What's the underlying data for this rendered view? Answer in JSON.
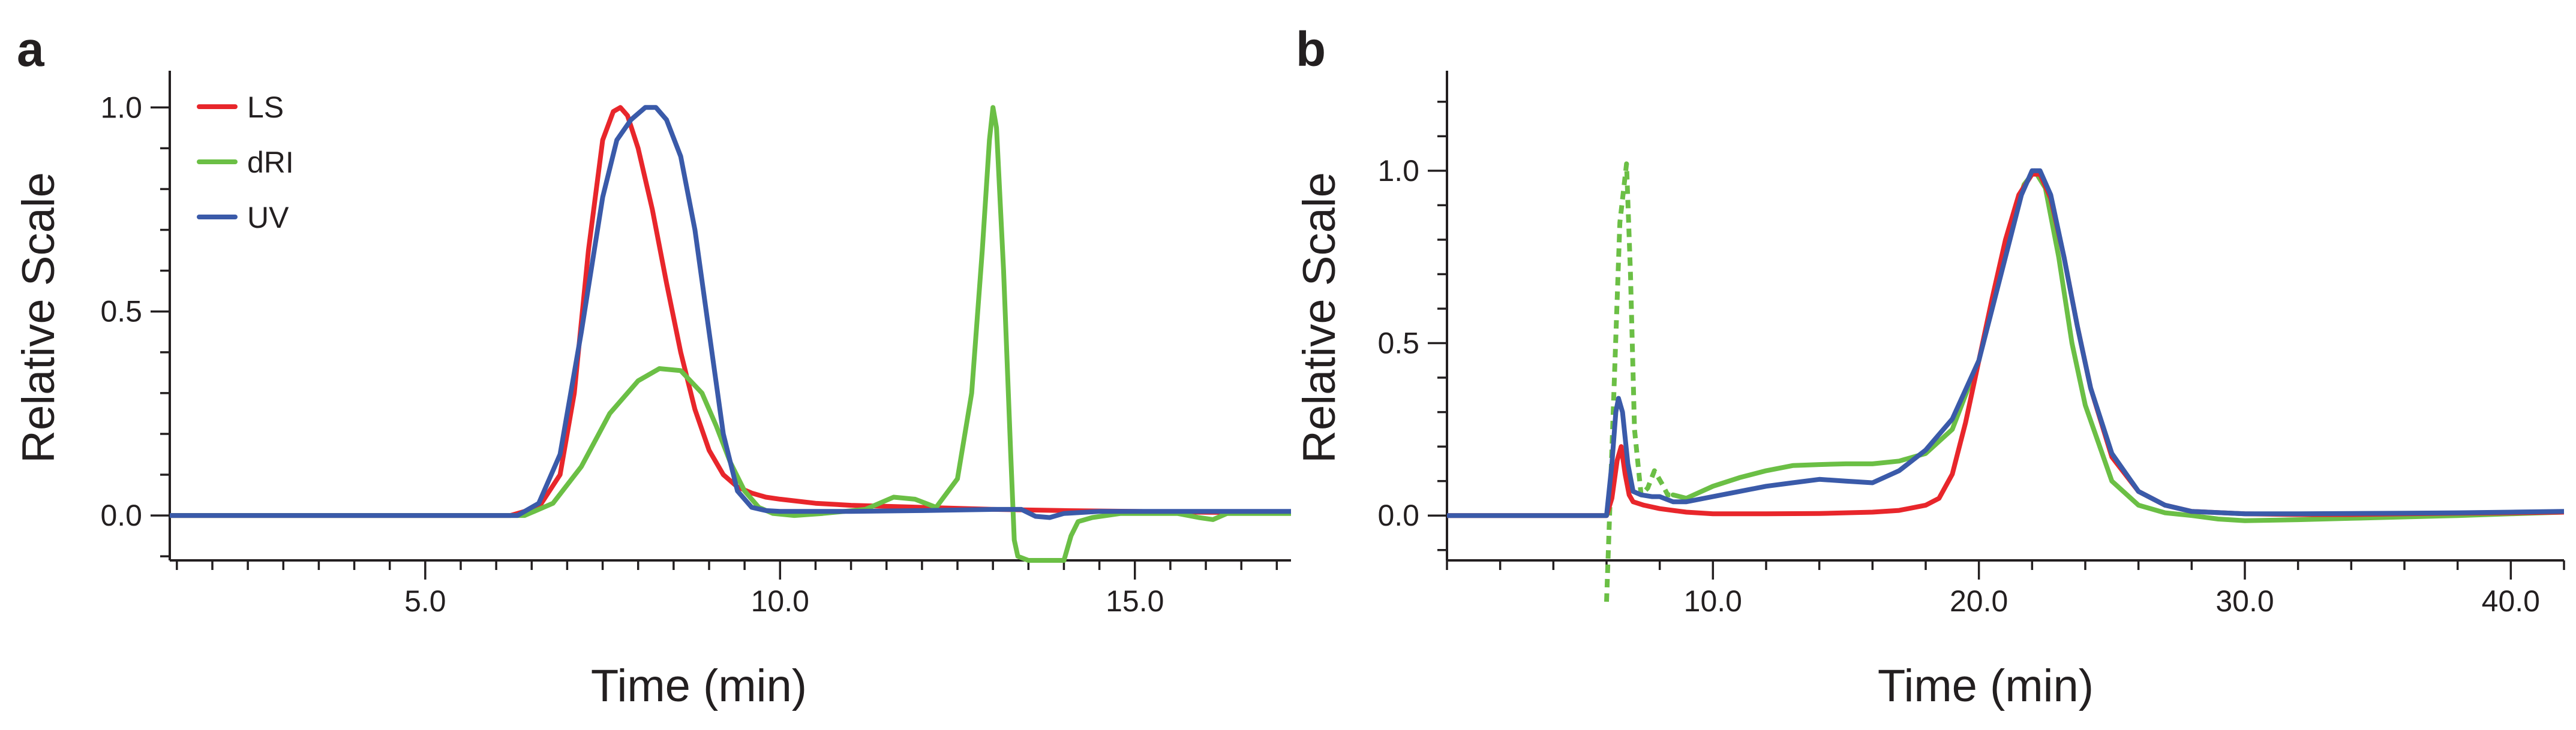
{
  "chart_data": [
    {
      "panel": "a",
      "type": "line",
      "title": "",
      "xlabel": "Time (min)",
      "ylabel": "Relative Scale",
      "xlim": [
        1.4,
        17.2
      ],
      "ylim": [
        -0.11,
        1.09
      ],
      "x_ticks": [
        5.0,
        10.0,
        15.0
      ],
      "x_tick_labels": [
        "5.0",
        "10.0",
        "15.0"
      ],
      "y_ticks": [
        0.0,
        0.5,
        1.0
      ],
      "y_tick_labels": [
        "0.0",
        "0.5",
        "1.0"
      ],
      "legend": [
        "LS",
        "dRI",
        "UV"
      ],
      "grid": false,
      "series": [
        {
          "name": "LS",
          "color": "#e8262b",
          "dashed": false,
          "x": [
            1.4,
            6.2,
            6.6,
            6.9,
            7.1,
            7.3,
            7.5,
            7.65,
            7.75,
            7.85,
            8.0,
            8.2,
            8.4,
            8.6,
            8.8,
            9.0,
            9.2,
            9.4,
            9.6,
            9.8,
            10.0,
            10.5,
            11.0,
            12.0,
            13.0,
            14.0,
            15.0,
            16.0,
            17.2
          ],
          "y": [
            0.0,
            0.0,
            0.02,
            0.1,
            0.3,
            0.65,
            0.92,
            0.99,
            1.0,
            0.98,
            0.9,
            0.75,
            0.57,
            0.4,
            0.26,
            0.16,
            0.1,
            0.07,
            0.055,
            0.045,
            0.04,
            0.03,
            0.025,
            0.02,
            0.015,
            0.012,
            0.01,
            0.008,
            0.006
          ]
        },
        {
          "name": "dRI",
          "color": "#6bbf45",
          "dashed": false,
          "x": [
            1.4,
            6.4,
            6.8,
            7.2,
            7.6,
            8.0,
            8.3,
            8.6,
            8.9,
            9.1,
            9.3,
            9.5,
            9.7,
            9.9,
            10.2,
            10.6,
            11.2,
            11.6,
            11.9,
            12.2,
            12.5,
            12.7,
            12.85,
            12.95,
            13.0,
            13.05,
            13.15,
            13.25,
            13.3,
            13.35,
            13.5,
            13.7,
            13.85,
            14.0,
            14.1,
            14.2,
            14.4,
            14.8,
            15.2,
            15.6,
            15.9,
            16.1,
            16.3,
            16.6,
            17.2
          ],
          "y": [
            0.0,
            0.0,
            0.03,
            0.12,
            0.25,
            0.33,
            0.36,
            0.355,
            0.3,
            0.22,
            0.13,
            0.06,
            0.02,
            0.005,
            0.0,
            0.005,
            0.015,
            0.045,
            0.04,
            0.02,
            0.09,
            0.3,
            0.65,
            0.92,
            1.0,
            0.95,
            0.6,
            0.15,
            -0.06,
            -0.1,
            -0.11,
            -0.11,
            -0.11,
            -0.11,
            -0.05,
            -0.015,
            -0.005,
            0.005,
            0.005,
            0.005,
            -0.005,
            -0.01,
            0.005,
            0.005,
            0.005
          ]
        },
        {
          "name": "UV",
          "color": "#3a5aa9",
          "dashed": false,
          "x": [
            1.4,
            6.3,
            6.6,
            6.9,
            7.2,
            7.5,
            7.7,
            7.9,
            8.1,
            8.25,
            8.4,
            8.6,
            8.8,
            9.0,
            9.2,
            9.4,
            9.6,
            9.8,
            10.0,
            10.5,
            11.0,
            12.0,
            13.0,
            13.4,
            13.6,
            13.8,
            14.0,
            14.5,
            15.0,
            15.5,
            16.0,
            17.2
          ],
          "y": [
            0.0,
            0.0,
            0.03,
            0.15,
            0.45,
            0.78,
            0.92,
            0.97,
            1.0,
            1.0,
            0.97,
            0.88,
            0.7,
            0.45,
            0.2,
            0.06,
            0.02,
            0.012,
            0.01,
            0.01,
            0.01,
            0.012,
            0.015,
            0.015,
            -0.002,
            -0.005,
            0.005,
            0.01,
            0.01,
            0.01,
            0.01,
            0.01
          ]
        }
      ]
    },
    {
      "panel": "b",
      "type": "line",
      "title": "",
      "xlabel": "Time (min)",
      "ylabel": "Relative Scale",
      "xlim": [
        0.0,
        42.0
      ],
      "ylim": [
        -0.13,
        1.29
      ],
      "x_ticks": [
        10.0,
        20.0,
        30.0,
        40.0
      ],
      "x_tick_labels": [
        "10.0",
        "20.0",
        "30.0",
        "40.0"
      ],
      "y_ticks": [
        0.0,
        0.5,
        1.0
      ],
      "y_tick_labels": [
        "0.0",
        "0.5",
        "1.0"
      ],
      "legend": [],
      "grid": false,
      "series": [
        {
          "name": "dRI",
          "color": "#6bbf45",
          "dashed": true,
          "x": [
            6.0,
            6.25,
            6.5,
            6.75,
            6.9,
            7.05,
            7.3,
            7.55,
            7.8,
            8.1,
            8.3,
            8.5
          ],
          "y": [
            -0.25,
            0.3,
            0.85,
            1.02,
            0.7,
            0.25,
            0.06,
            0.08,
            0.13,
            0.09,
            0.06,
            0.06
          ]
        },
        {
          "name": "dRI",
          "color": "#6bbf45",
          "dashed": false,
          "x": [
            8.5,
            9.0,
            10.0,
            11.0,
            12.0,
            13.0,
            14.0,
            15.0,
            16.0,
            17.0,
            18.0,
            19.0,
            20.0,
            21.0,
            21.7,
            22.1,
            22.5,
            23.0,
            23.5,
            24.0,
            25.0,
            26.0,
            27.0,
            28.0,
            29.0,
            30.0,
            32.0,
            34.0,
            36.0,
            38.0,
            40.0,
            42.0
          ],
          "y": [
            0.06,
            0.05,
            0.085,
            0.11,
            0.13,
            0.145,
            0.148,
            0.15,
            0.15,
            0.158,
            0.18,
            0.25,
            0.45,
            0.78,
            0.96,
            1.0,
            0.95,
            0.75,
            0.5,
            0.32,
            0.1,
            0.03,
            0.008,
            0.0,
            -0.01,
            -0.015,
            -0.012,
            -0.008,
            -0.004,
            0.0,
            0.005,
            0.01
          ]
        },
        {
          "name": "LS",
          "color": "#e8262b",
          "dashed": false,
          "x": [
            0.0,
            6.0,
            6.2,
            6.4,
            6.55,
            6.7,
            6.85,
            7.0,
            7.4,
            8.0,
            9.0,
            10.0,
            12.0,
            14.0,
            16.0,
            17.0,
            18.0,
            18.5,
            19.0,
            19.5,
            20.0,
            20.5,
            21.0,
            21.5,
            22.0,
            22.3,
            22.7,
            23.2,
            23.7,
            24.2,
            25.0,
            26.0,
            27.0,
            28.0,
            30.0,
            32.0,
            34.0,
            36.0,
            38.0,
            40.0,
            42.0
          ],
          "y": [
            0.0,
            0.0,
            0.05,
            0.16,
            0.2,
            0.12,
            0.06,
            0.04,
            0.03,
            0.02,
            0.01,
            0.005,
            0.005,
            0.006,
            0.01,
            0.015,
            0.03,
            0.05,
            0.12,
            0.27,
            0.45,
            0.63,
            0.8,
            0.93,
            0.99,
            0.99,
            0.92,
            0.75,
            0.55,
            0.37,
            0.17,
            0.07,
            0.03,
            0.012,
            0.005,
            0.003,
            0.003,
            0.005,
            0.007,
            0.008,
            0.01
          ]
        },
        {
          "name": "UV",
          "color": "#3a5aa9",
          "dashed": false,
          "x": [
            0.0,
            6.0,
            6.2,
            6.35,
            6.45,
            6.6,
            6.8,
            7.0,
            7.3,
            7.7,
            8.0,
            8.5,
            9.0,
            10.0,
            11.0,
            12.0,
            13.0,
            14.0,
            15.0,
            16.0,
            17.0,
            18.0,
            19.0,
            20.0,
            21.0,
            21.6,
            22.0,
            22.3,
            22.7,
            23.2,
            23.7,
            24.2,
            25.0,
            26.0,
            27.0,
            28.0,
            30.0,
            32.0,
            34.0,
            36.0,
            38.0,
            40.0,
            42.0
          ],
          "y": [
            0.0,
            0.0,
            0.15,
            0.3,
            0.34,
            0.3,
            0.15,
            0.07,
            0.06,
            0.055,
            0.055,
            0.04,
            0.04,
            0.055,
            0.07,
            0.085,
            0.095,
            0.105,
            0.1,
            0.095,
            0.13,
            0.19,
            0.28,
            0.45,
            0.75,
            0.93,
            1.0,
            1.0,
            0.93,
            0.75,
            0.55,
            0.37,
            0.18,
            0.07,
            0.03,
            0.012,
            0.005,
            0.005,
            0.006,
            0.007,
            0.008,
            0.01,
            0.012
          ]
        }
      ]
    }
  ]
}
